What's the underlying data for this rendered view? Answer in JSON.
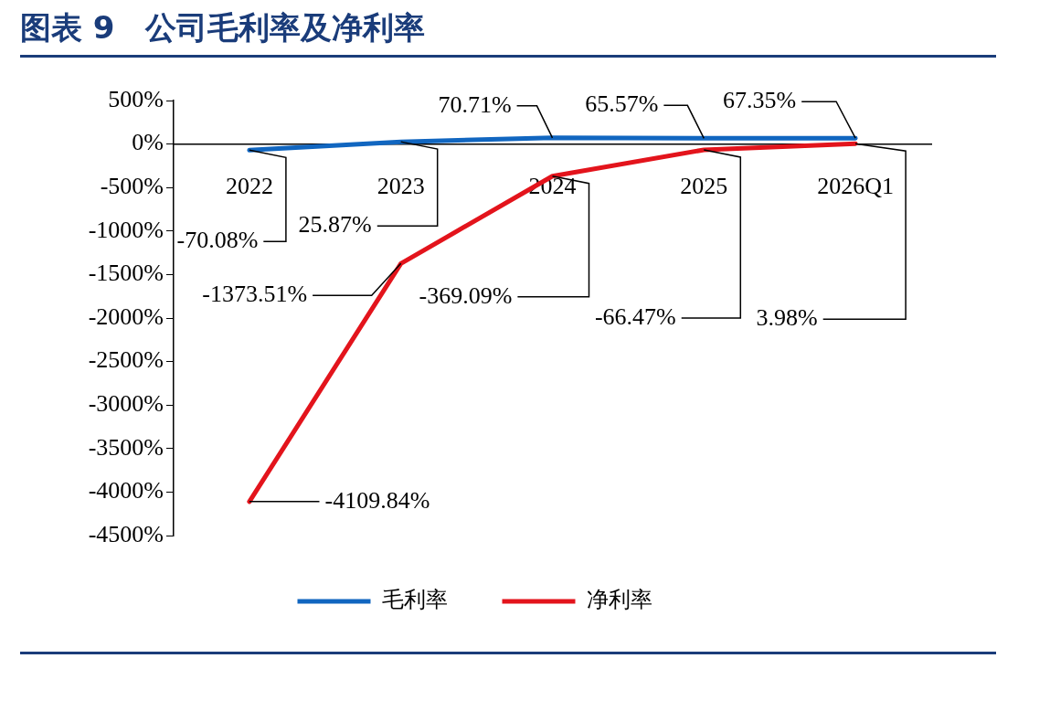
{
  "chart_data": {
    "type": "line",
    "title": "图表 9　公司毛利率及净利率",
    "categories": [
      "2022",
      "2023",
      "2024",
      "2025",
      "2026Q1"
    ],
    "series": [
      {
        "name": "毛利率",
        "color": "#1166c0",
        "values": [
          -70.08,
          25.87,
          70.71,
          65.57,
          67.35
        ],
        "value_labels": [
          "-70.08%",
          "25.87%",
          "70.71%",
          "65.57%",
          "67.35%"
        ]
      },
      {
        "name": "净利率",
        "color": "#e3141c",
        "values": [
          -4109.84,
          -1373.51,
          -369.09,
          -66.47,
          3.98
        ],
        "value_labels": [
          "-4109.84%",
          "-1373.51%",
          "-369.09%",
          "-66.47%",
          "3.98%"
        ]
      }
    ],
    "ylim": [
      -4500,
      500
    ],
    "yticks": [
      {
        "value": 500,
        "label": "500%"
      },
      {
        "value": 0,
        "label": "0%"
      },
      {
        "value": -500,
        "label": "-500%"
      },
      {
        "value": -1000,
        "label": "-1000%"
      },
      {
        "value": -1500,
        "label": "-1500%"
      },
      {
        "value": -2000,
        "label": "-2000%"
      },
      {
        "value": -2500,
        "label": "-2500%"
      },
      {
        "value": -3000,
        "label": "-3000%"
      },
      {
        "value": -3500,
        "label": "-3500%"
      },
      {
        "value": -4000,
        "label": "-4000%"
      },
      {
        "value": -4500,
        "label": "-4500%"
      }
    ],
    "grid": false,
    "legend": "bottom",
    "marker": "none",
    "line_style": "solid"
  }
}
